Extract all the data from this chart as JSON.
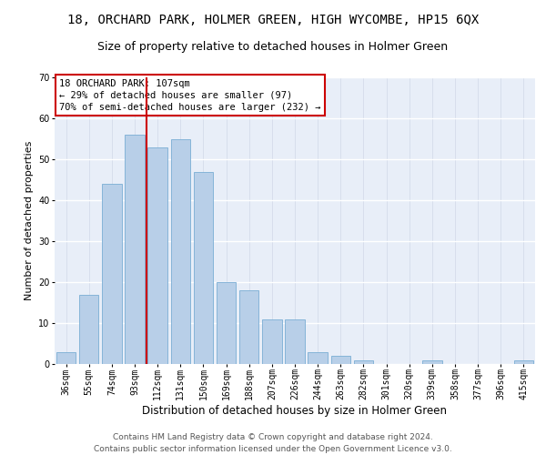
{
  "title": "18, ORCHARD PARK, HOLMER GREEN, HIGH WYCOMBE, HP15 6QX",
  "subtitle": "Size of property relative to detached houses in Holmer Green",
  "xlabel": "Distribution of detached houses by size in Holmer Green",
  "ylabel": "Number of detached properties",
  "categories": [
    "36sqm",
    "55sqm",
    "74sqm",
    "93sqm",
    "112sqm",
    "131sqm",
    "150sqm",
    "169sqm",
    "188sqm",
    "207sqm",
    "226sqm",
    "244sqm",
    "263sqm",
    "282sqm",
    "301sqm",
    "320sqm",
    "339sqm",
    "358sqm",
    "377sqm",
    "396sqm",
    "415sqm"
  ],
  "values": [
    3,
    17,
    44,
    56,
    53,
    55,
    47,
    20,
    18,
    11,
    11,
    3,
    2,
    1,
    0,
    0,
    1,
    0,
    0,
    0,
    1
  ],
  "bar_color": "#b8cfe8",
  "bar_edge_color": "#7aadd4",
  "vline_x": 3.5,
  "vline_color": "#cc0000",
  "ann_line1": "18 ORCHARD PARK: 107sqm",
  "ann_line2": "← 29% of detached houses are smaller (97)",
  "ann_line3": "70% of semi-detached houses are larger (232) →",
  "annotation_box_color": "#ffffff",
  "annotation_box_edge": "#cc0000",
  "ylim": [
    0,
    70
  ],
  "yticks": [
    0,
    10,
    20,
    30,
    40,
    50,
    60,
    70
  ],
  "footer_line1": "Contains HM Land Registry data © Crown copyright and database right 2024.",
  "footer_line2": "Contains public sector information licensed under the Open Government Licence v3.0.",
  "bg_color": "#e8eef8",
  "grid_color_h": "#ffffff",
  "grid_color_v": "#d0d8e8",
  "title_fontsize": 10,
  "subtitle_fontsize": 9,
  "xlabel_fontsize": 8.5,
  "ylabel_fontsize": 8,
  "tick_fontsize": 7,
  "ann_fontsize": 7.5,
  "footer_fontsize": 6.5
}
